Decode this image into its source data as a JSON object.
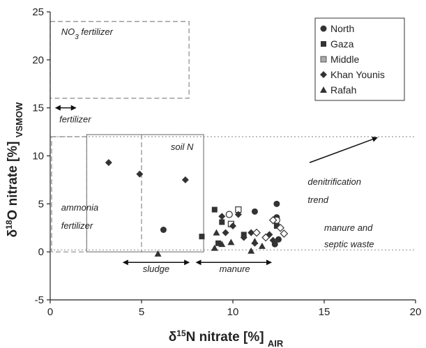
{
  "chart_data": {
    "type": "scatter",
    "xlabel": {
      "prefix": "δ",
      "sup": "15",
      "main": "N nitrate [%]",
      "sub": "AIR"
    },
    "ylabel": {
      "prefix": "δ",
      "sup": "18",
      "main": "O nitrate [%]",
      "sub": "VSMOW"
    },
    "xlim": [
      0,
      20
    ],
    "ylim": [
      -5,
      25
    ],
    "xticks": [
      0,
      5,
      10,
      15,
      20
    ],
    "yticks": [
      -5,
      0,
      5,
      10,
      15,
      20,
      25
    ],
    "legend_position": "top-right",
    "series": [
      {
        "name": "North",
        "marker": "circle",
        "points": [
          {
            "x": 6.2,
            "y": 2.3
          },
          {
            "x": 11.2,
            "y": 4.2
          },
          {
            "x": 12.4,
            "y": 5.0
          },
          {
            "x": 12.4,
            "y": 3.6
          },
          {
            "x": 12.5,
            "y": 1.3
          },
          {
            "x": 12.3,
            "y": 0.8
          }
        ]
      },
      {
        "name": "North (open)",
        "marker": "circle-open",
        "points": [
          {
            "x": 9.8,
            "y": 3.9
          },
          {
            "x": 12.4,
            "y": 3.3
          }
        ]
      },
      {
        "name": "Gaza",
        "marker": "square",
        "points": [
          {
            "x": 8.3,
            "y": 1.6
          },
          {
            "x": 9.0,
            "y": 4.4
          },
          {
            "x": 9.4,
            "y": 3.1
          },
          {
            "x": 9.2,
            "y": 0.9
          },
          {
            "x": 10.6,
            "y": 1.8
          },
          {
            "x": 12.4,
            "y": 2.7
          }
        ]
      },
      {
        "name": "Middle",
        "marker": "square-open",
        "points": [
          {
            "x": 10.3,
            "y": 4.4
          },
          {
            "x": 9.9,
            "y": 2.9
          }
        ]
      },
      {
        "name": "Khan Younis",
        "marker": "diamond",
        "points": [
          {
            "x": 3.2,
            "y": 9.3
          },
          {
            "x": 4.9,
            "y": 8.1
          },
          {
            "x": 7.4,
            "y": 7.5
          },
          {
            "x": 9.4,
            "y": 3.7
          },
          {
            "x": 10.3,
            "y": 3.9
          },
          {
            "x": 10.0,
            "y": 2.7
          },
          {
            "x": 9.6,
            "y": 2.0
          },
          {
            "x": 10.6,
            "y": 1.5
          },
          {
            "x": 11.0,
            "y": 2.0
          },
          {
            "x": 11.2,
            "y": 0.9
          },
          {
            "x": 12.0,
            "y": 1.8
          },
          {
            "x": 12.2,
            "y": 1.2
          }
        ]
      },
      {
        "name": "Khan Younis (open)",
        "marker": "diamond-open",
        "points": [
          {
            "x": 11.3,
            "y": 2.0
          },
          {
            "x": 11.8,
            "y": 1.5
          },
          {
            "x": 12.2,
            "y": 3.3
          },
          {
            "x": 12.6,
            "y": 2.5
          },
          {
            "x": 12.8,
            "y": 1.9
          }
        ]
      },
      {
        "name": "Rafah",
        "marker": "triangle",
        "points": [
          {
            "x": 5.9,
            "y": -0.2
          },
          {
            "x": 9.1,
            "y": 2.0
          },
          {
            "x": 9.0,
            "y": 0.4
          },
          {
            "x": 9.4,
            "y": 0.8
          },
          {
            "x": 9.9,
            "y": 1.0
          },
          {
            "x": 11.0,
            "y": 0.1
          },
          {
            "x": 11.2,
            "y": 1.1
          },
          {
            "x": 11.6,
            "y": 0.6
          }
        ]
      }
    ],
    "legend": [
      {
        "label": "North",
        "marker": "circle"
      },
      {
        "label": "Gaza",
        "marker": "square"
      },
      {
        "label": "Middle",
        "marker": "square-light"
      },
      {
        "label": "Khan Younis",
        "marker": "diamond"
      },
      {
        "label": "Rafah",
        "marker": "triangle"
      }
    ],
    "annotations": {
      "no3_fertilizer": {
        "main": "NO",
        "sub": "3",
        "rest": " fertilizer"
      },
      "fertilizer": "fertilizer",
      "soil_n": "soil N",
      "ammonia_fertilizer": [
        "ammonia",
        "fertilizer"
      ],
      "denitrification_trend": [
        "denitrification",
        "trend"
      ],
      "manure_and_septic_waste": [
        "manure and",
        "septic waste"
      ],
      "sludge": "sludge",
      "manure": "manure"
    },
    "regions": {
      "no3_fertilizer_box": {
        "x": [
          0,
          7.6
        ],
        "y": [
          16,
          24
        ]
      },
      "soil_n_box": {
        "x": [
          2,
          8.4
        ],
        "y": [
          0,
          12
        ],
        "divider_x": 5
      },
      "manure_septic_band_y": [
        0.2,
        12
      ],
      "ammonia_box_dashed": {
        "x": [
          0,
          2
        ],
        "y": [
          0,
          12
        ]
      },
      "fertilizer_arrow_x": [
        0.3,
        1.4
      ],
      "sludge_arrow_x": [
        4.0,
        7.6
      ],
      "manure_arrow_x": [
        8.0,
        12.1
      ],
      "denitrification_arrow": {
        "from": [
          14.2,
          9.3
        ],
        "to": [
          17.9,
          11.9
        ]
      }
    }
  },
  "colors": {
    "marker": "#333333",
    "marker_light": "#aaaaaa",
    "guide": "#888888",
    "dotted": "#999999"
  }
}
